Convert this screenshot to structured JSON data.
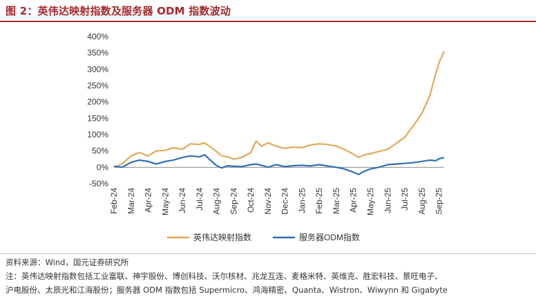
{
  "figure": {
    "title": "图 2：英伟达映射指数及服务器 ODM 指数波动",
    "source": "资料来源：Wind，国元证券研究所",
    "note_line1": "注：英伟达映射指数包括工业富联、神宇股份、博创科技、沃尔核材、兆龙互连、麦格米特、英维克、胜宏科技、景旺电子、",
    "note_line2": "沪电股份、太辰光和江海股份；服务器 ODM 指数包括 Supermicro、鸿海精密、Quanta、Wistron、Wiwynn 和 Gigabyte"
  },
  "chart_data": {
    "type": "line",
    "y_ticks": [
      "400%",
      "350%",
      "300%",
      "250%",
      "200%",
      "150%",
      "100%",
      "50%",
      "0%",
      "-50%"
    ],
    "ylim": [
      -50,
      400
    ],
    "x_tick_labels": [
      "Feb-24",
      "Mar-24",
      "Apr-24",
      "May-24",
      "Jun-24",
      "Jul-24",
      "Aug-24",
      "Sep-24",
      "Oct-24",
      "Nov-24",
      "Dec-24",
      "Jan-25",
      "Feb-25",
      "Mar-25",
      "Apr-25",
      "May-25",
      "Jun-25",
      "Jul-25",
      "Aug-25",
      "Sep-25"
    ],
    "x_range": [
      "2024-02",
      "2025-09"
    ],
    "grid": false,
    "legend_position": "bottom",
    "series": [
      {
        "name": "英伟达映射指数",
        "color": "#e3a857",
        "points": [
          [
            "2024-02",
            0
          ],
          [
            "2024-02-15",
            10
          ],
          [
            "2024-03",
            35
          ],
          [
            "2024-03-15",
            45
          ],
          [
            "2024-04",
            35
          ],
          [
            "2024-04-15",
            50
          ],
          [
            "2024-05",
            52
          ],
          [
            "2024-05-15",
            60
          ],
          [
            "2024-06",
            55
          ],
          [
            "2024-06-15",
            72
          ],
          [
            "2024-07",
            70
          ],
          [
            "2024-07-10",
            75
          ],
          [
            "2024-07-20",
            62
          ],
          [
            "2024-08",
            48
          ],
          [
            "2024-08-10",
            35
          ],
          [
            "2024-08-20",
            32
          ],
          [
            "2024-09",
            25
          ],
          [
            "2024-09-15",
            30
          ],
          [
            "2024-10",
            45
          ],
          [
            "2024-10-10",
            80
          ],
          [
            "2024-10-20",
            65
          ],
          [
            "2024-11",
            75
          ],
          [
            "2024-11-15",
            65
          ],
          [
            "2024-12",
            58
          ],
          [
            "2024-12-15",
            62
          ],
          [
            "2025-01",
            60
          ],
          [
            "2025-01-15",
            68
          ],
          [
            "2025-02",
            72
          ],
          [
            "2025-02-15",
            70
          ],
          [
            "2025-03",
            65
          ],
          [
            "2025-03-15",
            55
          ],
          [
            "2025-04",
            40
          ],
          [
            "2025-04-10",
            30
          ],
          [
            "2025-04-20",
            38
          ],
          [
            "2025-05",
            42
          ],
          [
            "2025-05-15",
            48
          ],
          [
            "2025-06",
            55
          ],
          [
            "2025-06-15",
            72
          ],
          [
            "2025-07",
            92
          ],
          [
            "2025-07-15",
            125
          ],
          [
            "2025-08",
            165
          ],
          [
            "2025-08-15",
            220
          ],
          [
            "2025-08-25",
            285
          ],
          [
            "2025-09",
            320
          ],
          [
            "2025-09-10",
            355
          ]
        ]
      },
      {
        "name": "服务器ODM指数",
        "color": "#2f6fb5",
        "points": [
          [
            "2024-02",
            3
          ],
          [
            "2024-02-15",
            0
          ],
          [
            "2024-03",
            15
          ],
          [
            "2024-03-15",
            22
          ],
          [
            "2024-04",
            18
          ],
          [
            "2024-04-15",
            10
          ],
          [
            "2024-05",
            18
          ],
          [
            "2024-05-15",
            22
          ],
          [
            "2024-06",
            30
          ],
          [
            "2024-06-15",
            35
          ],
          [
            "2024-07",
            32
          ],
          [
            "2024-07-10",
            38
          ],
          [
            "2024-07-20",
            22
          ],
          [
            "2024-08",
            5
          ],
          [
            "2024-08-10",
            -2
          ],
          [
            "2024-08-20",
            5
          ],
          [
            "2024-09",
            3
          ],
          [
            "2024-09-15",
            2
          ],
          [
            "2024-10",
            8
          ],
          [
            "2024-10-10",
            10
          ],
          [
            "2024-10-20",
            6
          ],
          [
            "2024-11",
            0
          ],
          [
            "2024-11-15",
            8
          ],
          [
            "2024-12",
            2
          ],
          [
            "2024-12-15",
            5
          ],
          [
            "2025-01",
            6
          ],
          [
            "2025-01-15",
            4
          ],
          [
            "2025-02",
            8
          ],
          [
            "2025-02-15",
            4
          ],
          [
            "2025-03",
            0
          ],
          [
            "2025-03-15",
            -5
          ],
          [
            "2025-04",
            -15
          ],
          [
            "2025-04-10",
            -22
          ],
          [
            "2025-04-20",
            -12
          ],
          [
            "2025-05",
            -5
          ],
          [
            "2025-05-15",
            0
          ],
          [
            "2025-06",
            8
          ],
          [
            "2025-06-15",
            10
          ],
          [
            "2025-07",
            12
          ],
          [
            "2025-07-15",
            14
          ],
          [
            "2025-08",
            18
          ],
          [
            "2025-08-15",
            22
          ],
          [
            "2025-08-25",
            20
          ],
          [
            "2025-09",
            26
          ],
          [
            "2025-09-10",
            30
          ]
        ]
      }
    ]
  }
}
